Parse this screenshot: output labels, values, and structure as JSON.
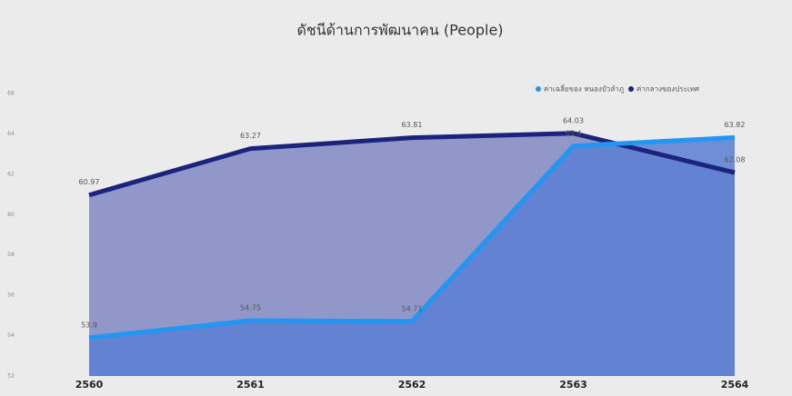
{
  "chart_data": {
    "type": "area-line",
    "title": "ดัชนีด้านการพัฒนาคน (People)",
    "categories": [
      "2560",
      "2561",
      "2562",
      "2563",
      "2564"
    ],
    "series": [
      {
        "name": "ค่ากลางของประเทศ",
        "color": "#1a237e",
        "fill": "#9297c9",
        "values": [
          60.97,
          63.27,
          63.81,
          64.03,
          62.08
        ]
      },
      {
        "name": "ค่าเฉลี่ยของ หนองบัวลำภู",
        "color": "#2196f3",
        "fill": "#5b7ed2",
        "values": [
          53.9,
          54.75,
          54.71,
          63.4,
          63.82
        ]
      }
    ],
    "ylim": [
      52,
      66
    ],
    "yticks": [
      52,
      54,
      56,
      58,
      60,
      62,
      64,
      66
    ],
    "legend": "top-right"
  }
}
